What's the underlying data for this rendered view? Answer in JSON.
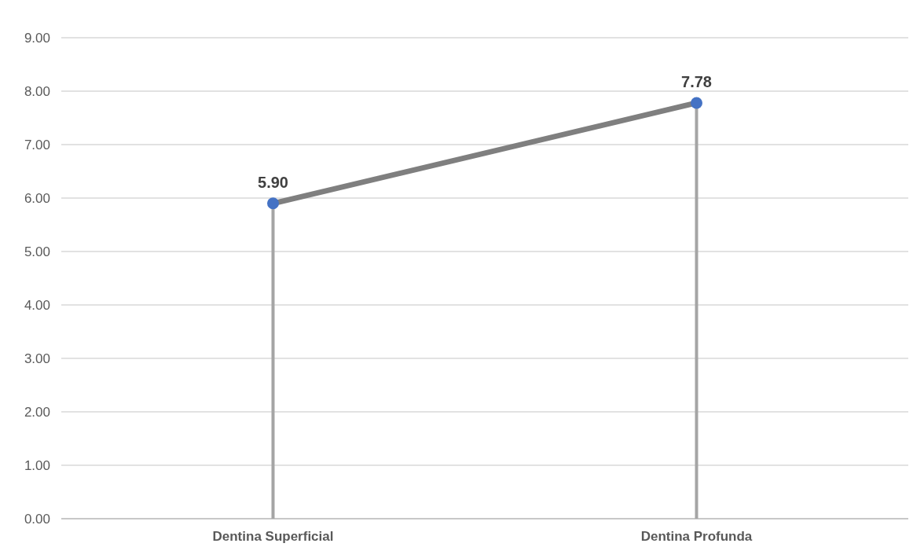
{
  "chart_data": {
    "type": "line",
    "categories": [
      "Dentina Superficial",
      "Dentina Profunda"
    ],
    "series": [
      {
        "color": "#7f7f7f",
        "values": [
          5.9,
          7.78
        ]
      },
      {
        "type": "lollipop",
        "color": "#4472c4",
        "values": [
          5.9,
          7.78
        ],
        "value_labels": [
          "5.90",
          "7.78"
        ]
      }
    ],
    "ylim": [
      0,
      9
    ],
    "yticks": [
      {
        "value": 0,
        "label": "0.00"
      },
      {
        "value": 1,
        "label": "1.00"
      },
      {
        "value": 2,
        "label": "2.00"
      },
      {
        "value": 3,
        "label": "3.00"
      },
      {
        "value": 4,
        "label": "4.00"
      },
      {
        "value": 5,
        "label": "5.00"
      },
      {
        "value": 6,
        "label": "6.00"
      },
      {
        "value": 7,
        "label": "7.00"
      },
      {
        "value": 8,
        "label": "8.00"
      },
      {
        "value": 9,
        "label": "9.00"
      }
    ],
    "grid": "y"
  }
}
